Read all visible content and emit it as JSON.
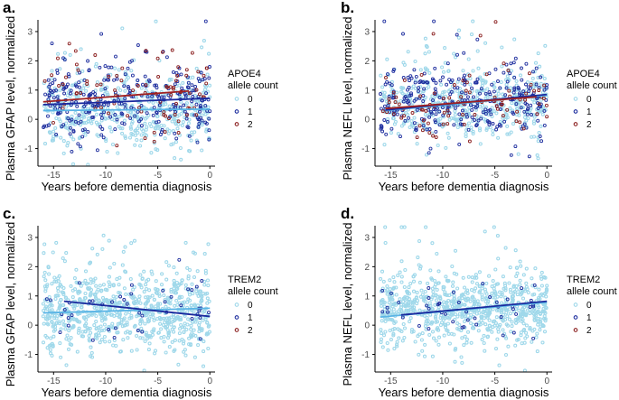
{
  "colors": {
    "allele_0": "#9fd8ea",
    "allele_1": "#1f2f9f",
    "allele_2": "#8b2020",
    "fit_0": "#5ab4e5",
    "fit_1": "#1a2a9e",
    "fit_2": "#a02020",
    "axis": "#000000",
    "tick_text": "#4d4d4d"
  },
  "panels": [
    {
      "letter": "a.",
      "ylabel": "Plasma GFAP level, normalized",
      "xlabel": "Years before dementia diagnosis",
      "legend_title_1": "APOE4",
      "legend_title_2": "allele count",
      "legend_items": [
        "0",
        "1",
        "2"
      ]
    },
    {
      "letter": "b.",
      "ylabel": "Plasma NEFL level, normalized",
      "xlabel": "Years before dementia diagnosis",
      "legend_title_1": "APOE4",
      "legend_title_2": "allele count",
      "legend_items": [
        "0",
        "1",
        "2"
      ]
    },
    {
      "letter": "c.",
      "ylabel": "Plasma GFAP level, normalized",
      "xlabel": "Years before dementia diagnosis",
      "legend_title_1": "TREM2",
      "legend_title_2": "allele count",
      "legend_items": [
        "0",
        "1",
        "2"
      ]
    },
    {
      "letter": "d.",
      "ylabel": "Plasma NEFL level, normalized",
      "xlabel": "Years before dementia diagnosis",
      "legend_title_1": "TREM2",
      "legend_title_2": "allele count",
      "legend_items": [
        "0",
        "1",
        "2"
      ]
    }
  ],
  "chart_data": [
    {
      "type": "scatter",
      "panel": "a.",
      "xlabel": "Years before dementia diagnosis",
      "ylabel": "Plasma GFAP level, normalized",
      "xlim": [
        -16.5,
        0.5
      ],
      "ylim": [
        -1.6,
        3.4
      ],
      "xticks": [
        -15,
        -10,
        -5,
        0
      ],
      "yticks": [
        -1,
        0,
        1,
        2,
        3
      ],
      "legend_title": "APOE4 allele count",
      "grid": false,
      "series": [
        {
          "name": "0",
          "n_points": 520,
          "y_center": 0.3,
          "y_sd": 0.6,
          "fit": [
            [
              -16,
              0.3
            ],
            [
              0,
              0.35
            ]
          ]
        },
        {
          "name": "1",
          "n_points": 300,
          "y_center": 0.6,
          "y_sd": 0.65,
          "fit": [
            [
              -16,
              0.5
            ],
            [
              0,
              0.72
            ]
          ]
        },
        {
          "name": "2",
          "n_points": 90,
          "y_center": 0.8,
          "y_sd": 0.65,
          "fit": [
            [
              -16,
              0.6
            ],
            [
              -2,
              0.97
            ]
          ]
        }
      ]
    },
    {
      "type": "scatter",
      "panel": "b.",
      "xlabel": "Years before dementia diagnosis",
      "ylabel": "Plasma NEFL level, normalized",
      "xlim": [
        -16.5,
        0.5
      ],
      "ylim": [
        -1.6,
        3.4
      ],
      "xticks": [
        -15,
        -10,
        -5,
        0
      ],
      "yticks": [
        -1,
        0,
        1,
        2,
        3
      ],
      "legend_title": "APOE4 allele count",
      "grid": false,
      "series": [
        {
          "name": "0",
          "n_points": 520,
          "y_center": 0.5,
          "y_sd": 0.6,
          "fit": [
            [
              -15.5,
              0.3
            ],
            [
              0,
              0.82
            ]
          ]
        },
        {
          "name": "1",
          "n_points": 300,
          "y_center": 0.55,
          "y_sd": 0.65,
          "fit": [
            [
              -15.5,
              0.32
            ],
            [
              0,
              0.85
            ]
          ]
        },
        {
          "name": "2",
          "n_points": 90,
          "y_center": 0.55,
          "y_sd": 0.6,
          "fit": [
            [
              -15.5,
              0.37
            ],
            [
              -1,
              0.77
            ]
          ]
        }
      ]
    },
    {
      "type": "scatter",
      "panel": "c.",
      "xlabel": "Years before dementia diagnosis",
      "ylabel": "Plasma GFAP level, normalized",
      "xlim": [
        -16.5,
        0.5
      ],
      "ylim": [
        -1.6,
        3.4
      ],
      "xticks": [
        -15,
        -10,
        -5,
        0
      ],
      "yticks": [
        -1,
        0,
        1,
        2,
        3
      ],
      "legend_title": "TREM2 allele count",
      "grid": false,
      "series": [
        {
          "name": "0",
          "n_points": 820,
          "y_center": 0.45,
          "y_sd": 0.65,
          "fit": [
            [
              -16,
              0.42
            ],
            [
              0,
              0.58
            ]
          ]
        },
        {
          "name": "1",
          "n_points": 45,
          "y_center": 0.55,
          "y_sd": 0.6,
          "fit": [
            [
              -14,
              0.82
            ],
            [
              0,
              0.3
            ]
          ]
        },
        {
          "name": "2",
          "n_points": 0,
          "y_center": 0,
          "y_sd": 0
        }
      ]
    },
    {
      "type": "scatter",
      "panel": "d.",
      "xlabel": "Years before dementia diagnosis",
      "ylabel": "Plasma NEFL level, normalized",
      "xlim": [
        -16.5,
        0.5
      ],
      "ylim": [
        -1.6,
        3.4
      ],
      "xticks": [
        -15,
        -10,
        -5,
        0
      ],
      "yticks": [
        -1,
        0,
        1,
        2,
        3
      ],
      "legend_title": "TREM2 allele count",
      "grid": false,
      "series": [
        {
          "name": "0",
          "n_points": 820,
          "y_center": 0.55,
          "y_sd": 0.6,
          "fit": [
            [
              -16,
              0.28
            ],
            [
              0,
              0.78
            ]
          ]
        },
        {
          "name": "1",
          "n_points": 45,
          "y_center": 0.55,
          "y_sd": 0.6,
          "fit": [
            [
              -14,
              0.35
            ],
            [
              0,
              0.82
            ]
          ]
        },
        {
          "name": "2",
          "n_points": 0,
          "y_center": 0,
          "y_sd": 0
        }
      ]
    }
  ]
}
